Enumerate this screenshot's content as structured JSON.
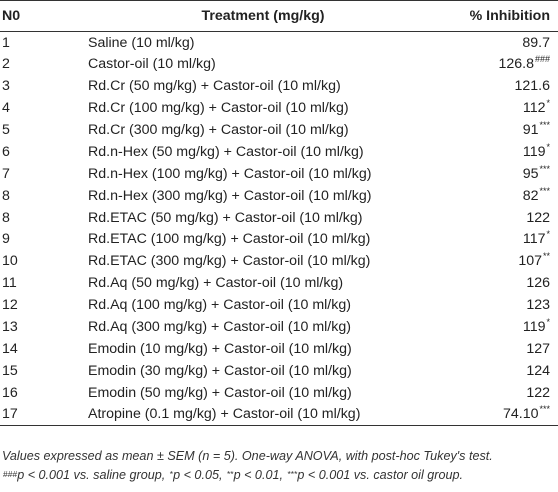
{
  "table": {
    "headers": {
      "no": "N0",
      "treatment": "Treatment (mg/kg)",
      "inhibition": "% Inhibition"
    },
    "rows": [
      {
        "no": "1",
        "treatment": "Saline (10 ml/kg)",
        "value": "89.7",
        "sig": ""
      },
      {
        "no": "2",
        "treatment": "Castor-oil (10 ml/kg)",
        "value": "126.8",
        "sig": "###"
      },
      {
        "no": "3",
        "treatment": "Rd.Cr (50 mg/kg) + Castor-oil (10 ml/kg)",
        "value": "121.6",
        "sig": ""
      },
      {
        "no": "4",
        "treatment": "Rd.Cr (100 mg/kg) + Castor-oil (10 ml/kg)",
        "value": "112",
        "sig": "*"
      },
      {
        "no": "5",
        "treatment": "Rd.Cr (300 mg/kg) + Castor-oil (10 ml/kg)",
        "value": "91",
        "sig": "***"
      },
      {
        "no": "6",
        "treatment": "Rd.n-Hex (50 mg/kg) + Castor-oil (10 ml/kg)",
        "value": "119",
        "sig": "*"
      },
      {
        "no": "7",
        "treatment": "Rd.n-Hex (100 mg/kg) + Castor-oil (10 ml/kg)",
        "value": "95",
        "sig": "***"
      },
      {
        "no": "8",
        "treatment": "Rd.n-Hex (300 mg/kg) + Castor-oil (10 ml/kg)",
        "value": "82",
        "sig": "***"
      },
      {
        "no": "8",
        "treatment": "Rd.ETAC (50 mg/kg) + Castor-oil (10 ml/kg)",
        "value": "122",
        "sig": ""
      },
      {
        "no": "9",
        "treatment": "Rd.ETAC (100 mg/kg) + Castor-oil (10 ml/kg)",
        "value": "117",
        "sig": "*"
      },
      {
        "no": "10",
        "treatment": "Rd.ETAC (300 mg/kg) + Castor-oil (10 ml/kg)",
        "value": "107",
        "sig": "**"
      },
      {
        "no": "11",
        "treatment": "Rd.Aq (50 mg/kg) + Castor-oil (10 ml/kg)",
        "value": "126",
        "sig": ""
      },
      {
        "no": "12",
        "treatment": "Rd.Aq (100 mg/kg) + Castor-oil (10 ml/kg)",
        "value": "123",
        "sig": ""
      },
      {
        "no": "13",
        "treatment": "Rd.Aq (300 mg/kg) + Castor-oil (10 ml/kg)",
        "value": "119",
        "sig": "*"
      },
      {
        "no": "14",
        "treatment": "Emodin (10 mg/kg) + Castor-oil (10 ml/kg)",
        "value": "127",
        "sig": ""
      },
      {
        "no": "15",
        "treatment": "Emodin (30 mg/kg) + Castor-oil (10 ml/kg)",
        "value": "124",
        "sig": ""
      },
      {
        "no": "16",
        "treatment": "Emodin (50 mg/kg) + Castor-oil (10 ml/kg)",
        "value": "122",
        "sig": ""
      },
      {
        "no": "17",
        "treatment": "Atropine (0.1 mg/kg) + Castor-oil (10 ml/kg)",
        "value": "74.10",
        "sig": "***"
      }
    ]
  },
  "notes": {
    "line1": "Values expressed as mean ± SEM (n = 5). One-way ANOVA, with post-hoc Tukey's test.",
    "sig1": "###",
    "text1": "p < 0.001 vs. saline group, ",
    "sig2": "*",
    "text2": "p < 0.05, ",
    "sig3": "**",
    "text3": "p < 0.01, ",
    "sig4": "***",
    "text4": "p < 0.001 vs. castor oil group."
  }
}
